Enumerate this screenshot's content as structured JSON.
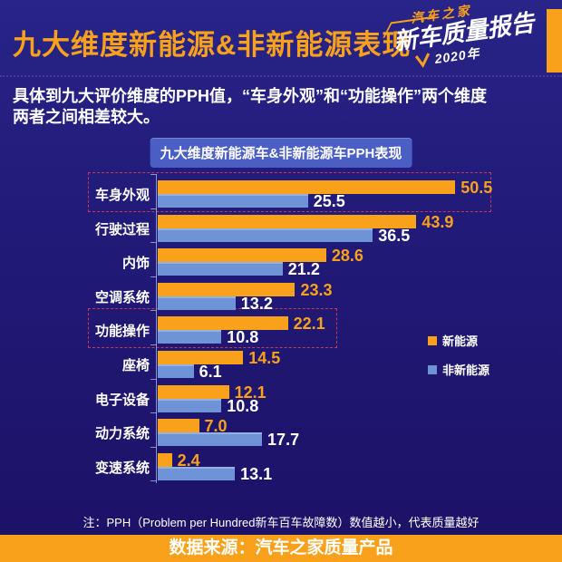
{
  "header": {
    "title": "九大维度新能源&非新能源表现",
    "logo": {
      "brand": "汽车之家",
      "report": "新车质量报告",
      "year": "2020年"
    }
  },
  "intro": {
    "line1": "具体到九大评价维度的PPH值，“车身外观”和“功能操作”两个维度",
    "line2": "两者之间相差较大。"
  },
  "chart_data": {
    "type": "bar",
    "orientation": "horizontal",
    "title": "九大维度新能源车&非新能源车PPH表现",
    "categories": [
      "车身外观",
      "行驶过程",
      "内饰",
      "空调系统",
      "功能操作",
      "座椅",
      "电子设备",
      "动力系统",
      "变速系统"
    ],
    "series": [
      {
        "name": "新能源",
        "color": "#F9A11B",
        "value_text_color": "#F9A11B",
        "values": [
          50.5,
          43.9,
          28.6,
          23.3,
          22.1,
          14.5,
          12.1,
          7.0,
          2.4
        ]
      },
      {
        "name": "非新能源",
        "color": "#6E93D6",
        "value_text_color": "#FFFFFF",
        "values": [
          25.5,
          36.5,
          21.2,
          13.2,
          10.8,
          6.1,
          10.8,
          17.7,
          13.1
        ]
      }
    ],
    "highlighted_categories": [
      "车身外观",
      "功能操作"
    ],
    "xlim": [
      0,
      55
    ],
    "grid": false,
    "legend_position": "middle-right"
  },
  "note": "注：PPH（Problem per Hundred新车百车故障数）数值越小，代表质量越好",
  "footer": "数据来源：汽车之家质量产品",
  "colors": {
    "accent_orange": "#F9A11B",
    "bar_blue": "#6E93D6",
    "badge_blue": "#4A5EC3",
    "highlight_red": "#C43B54",
    "background_top": "#282488",
    "background_bottom": "#1C1166"
  }
}
